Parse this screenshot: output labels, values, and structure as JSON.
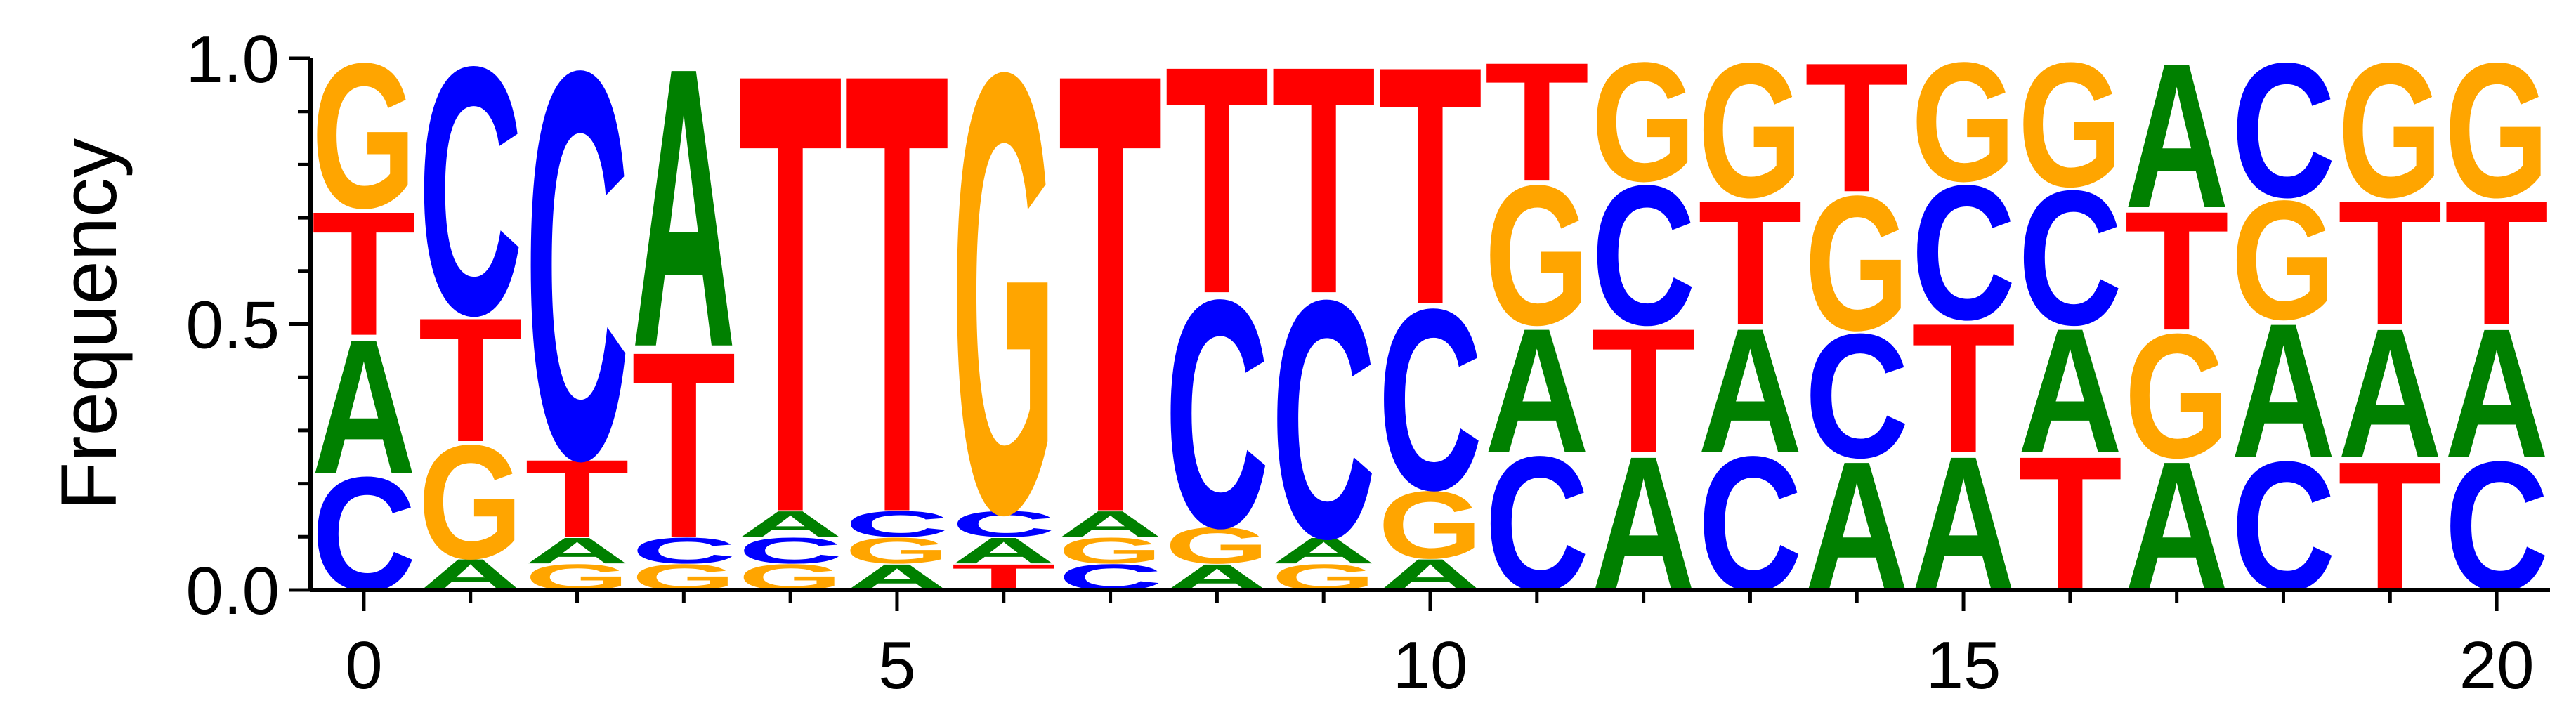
{
  "chart_data": {
    "type": "sequence-logo",
    "ylabel": "Frequency",
    "xlim": [
      -0.5,
      20.5
    ],
    "ylim": [
      0,
      1
    ],
    "xticks_major": [
      0,
      5,
      10,
      15,
      20
    ],
    "xtick_labels": [
      "0",
      "5",
      "10",
      "15",
      "20"
    ],
    "yticks_major": [
      0,
      0.5,
      1
    ],
    "ytick_labels": [
      "0.0",
      "0.5",
      "1.0"
    ],
    "colors": {
      "A": "#008000",
      "C": "#0000ff",
      "G": "#ffa500",
      "T": "#ff0000"
    },
    "positions": [
      {
        "pos": 0,
        "stack": [
          [
            "C",
            0.22
          ],
          [
            "A",
            0.26
          ],
          [
            "T",
            0.24
          ],
          [
            "G",
            0.28
          ]
        ]
      },
      {
        "pos": 1,
        "stack": [
          [
            "A",
            0.06
          ],
          [
            "G",
            0.22
          ],
          [
            "T",
            0.24
          ],
          [
            "C",
            0.48
          ]
        ]
      },
      {
        "pos": 2,
        "stack": [
          [
            "G",
            0.05
          ],
          [
            "A",
            0.05
          ],
          [
            "T",
            0.15
          ],
          [
            "C",
            0.75
          ]
        ]
      },
      {
        "pos": 3,
        "stack": [
          [
            "G",
            0.05
          ],
          [
            "C",
            0.05
          ],
          [
            "T",
            0.36
          ],
          [
            "A",
            0.54
          ]
        ]
      },
      {
        "pos": 4,
        "stack": [
          [
            "G",
            0.05
          ],
          [
            "C",
            0.05
          ],
          [
            "A",
            0.05
          ],
          [
            "T",
            0.85
          ]
        ]
      },
      {
        "pos": 5,
        "stack": [
          [
            "A",
            0.05
          ],
          [
            "G",
            0.05
          ],
          [
            "C",
            0.05
          ],
          [
            "T",
            0.85
          ]
        ]
      },
      {
        "pos": 6,
        "stack": [
          [
            "T",
            0.05
          ],
          [
            "A",
            0.05
          ],
          [
            "C",
            0.05
          ],
          [
            "G",
            0.85
          ]
        ]
      },
      {
        "pos": 7,
        "stack": [
          [
            "C",
            0.05
          ],
          [
            "G",
            0.05
          ],
          [
            "A",
            0.05
          ],
          [
            "T",
            0.85
          ]
        ]
      },
      {
        "pos": 8,
        "stack": [
          [
            "A",
            0.05
          ],
          [
            "G",
            0.07
          ],
          [
            "C",
            0.44
          ],
          [
            "T",
            0.44
          ]
        ]
      },
      {
        "pos": 9,
        "stack": [
          [
            "G",
            0.05
          ],
          [
            "A",
            0.05
          ],
          [
            "C",
            0.46
          ],
          [
            "T",
            0.44
          ]
        ]
      },
      {
        "pos": 10,
        "stack": [
          [
            "A",
            0.06
          ],
          [
            "G",
            0.13
          ],
          [
            "C",
            0.35
          ],
          [
            "T",
            0.46
          ]
        ]
      },
      {
        "pos": 11,
        "stack": [
          [
            "C",
            0.26
          ],
          [
            "A",
            0.24
          ],
          [
            "G",
            0.27
          ],
          [
            "T",
            0.23
          ]
        ]
      },
      {
        "pos": 12,
        "stack": [
          [
            "A",
            0.26
          ],
          [
            "T",
            0.24
          ],
          [
            "C",
            0.27
          ],
          [
            "G",
            0.23
          ]
        ]
      },
      {
        "pos": 13,
        "stack": [
          [
            "C",
            0.26
          ],
          [
            "A",
            0.24
          ],
          [
            "T",
            0.24
          ],
          [
            "G",
            0.26
          ]
        ]
      },
      {
        "pos": 14,
        "stack": [
          [
            "A",
            0.25
          ],
          [
            "C",
            0.24
          ],
          [
            "G",
            0.26
          ],
          [
            "T",
            0.25
          ]
        ]
      },
      {
        "pos": 15,
        "stack": [
          [
            "A",
            0.26
          ],
          [
            "T",
            0.25
          ],
          [
            "C",
            0.26
          ],
          [
            "G",
            0.23
          ]
        ]
      },
      {
        "pos": 16,
        "stack": [
          [
            "T",
            0.26
          ],
          [
            "A",
            0.24
          ],
          [
            "C",
            0.26
          ],
          [
            "G",
            0.24
          ]
        ]
      },
      {
        "pos": 17,
        "stack": [
          [
            "A",
            0.25
          ],
          [
            "G",
            0.24
          ],
          [
            "T",
            0.23
          ],
          [
            "T",
            0.0
          ],
          [
            "T",
            0.0
          ],
          [
            "A",
            0.0
          ],
          [
            "A",
            0.0
          ],
          [
            "A",
            0.28
          ]
        ]
      },
      {
        "pos": 18,
        "stack": [
          [
            "C",
            0.25
          ],
          [
            "A",
            0.26
          ],
          [
            "G",
            0.23
          ],
          [
            "C",
            0.26
          ]
        ]
      },
      {
        "pos": 19,
        "stack": [
          [
            "T",
            0.25
          ],
          [
            "A",
            0.25
          ],
          [
            "T",
            0.24
          ],
          [
            "G",
            0.26
          ]
        ]
      },
      {
        "pos": 20,
        "stack": [
          [
            "C",
            0.25
          ],
          [
            "A",
            0.25
          ],
          [
            "T",
            0.24
          ],
          [
            "G",
            0.26
          ]
        ]
      }
    ]
  }
}
